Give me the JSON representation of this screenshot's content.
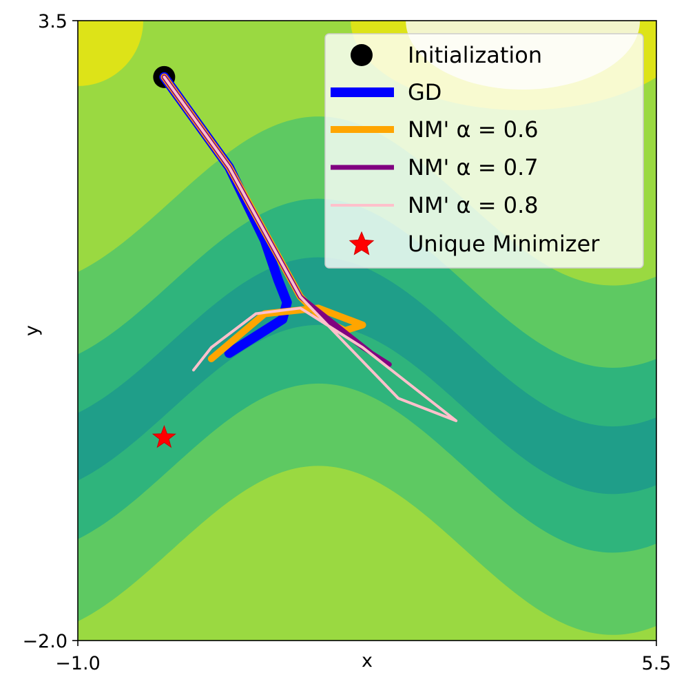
{
  "chart_data": {
    "type": "line",
    "title": "",
    "xlabel": "x",
    "ylabel": "y",
    "xlim": [
      -1.0,
      5.5
    ],
    "ylim": [
      -2.0,
      3.5
    ],
    "x_tick_labels": [
      "−1.0",
      "5.5"
    ],
    "y_tick_labels": [
      "3.5",
      "−2.0"
    ],
    "grid": false,
    "legend_position": "top-right",
    "background": {
      "type": "filled-contour",
      "description_levels": [
        "#1f9e89",
        "#2fb47c",
        "#5ec962",
        "#9ad941",
        "#dde318",
        "#f3f5cc"
      ]
    },
    "initialization": {
      "label": "Initialization",
      "x": -0.03,
      "y": 3.0,
      "color": "#000000"
    },
    "minimizer": {
      "label": "Unique Minimizer",
      "x": -0.03,
      "y": -0.2,
      "color": "#ff0000"
    },
    "series": [
      {
        "name": "GD",
        "color": "#0000ff",
        "legend_text": "GD",
        "x": [
          -0.03,
          0.7,
          1.1,
          1.25,
          1.35,
          1.3,
          1.0,
          0.7
        ],
        "y": [
          3.0,
          2.2,
          1.55,
          1.2,
          1.0,
          0.85,
          0.7,
          0.55
        ]
      },
      {
        "name": "NM' α = 0.6",
        "color": "#ffa500",
        "legend_text": "NM'  α = 0.6",
        "x": [
          -0.03,
          0.7,
          1.5,
          1.75,
          2.0,
          2.2,
          1.7,
          1.1,
          0.5
        ],
        "y": [
          3.0,
          2.2,
          1.05,
          0.85,
          0.75,
          0.8,
          0.95,
          0.9,
          0.5
        ]
      },
      {
        "name": "NM' α = 0.7",
        "color": "#800080",
        "legend_text": "NM'  α = 0.7",
        "x": [
          -0.03,
          0.7,
          1.5,
          1.9,
          2.3,
          2.5,
          2.2,
          1.7
        ],
        "y": [
          3.0,
          2.2,
          1.05,
          0.8,
          0.55,
          0.45,
          0.6,
          0.9
        ]
      },
      {
        "name": "NM' α = 0.8",
        "color": "#ffc0cb",
        "legend_text": "NM'  α = 0.8",
        "x": [
          -0.03,
          0.7,
          1.5,
          2.6,
          3.25,
          2.2,
          1.5,
          1.0,
          0.5,
          0.3
        ],
        "y": [
          3.0,
          2.2,
          1.05,
          0.15,
          -0.05,
          0.6,
          0.95,
          0.9,
          0.6,
          0.4
        ]
      }
    ]
  }
}
